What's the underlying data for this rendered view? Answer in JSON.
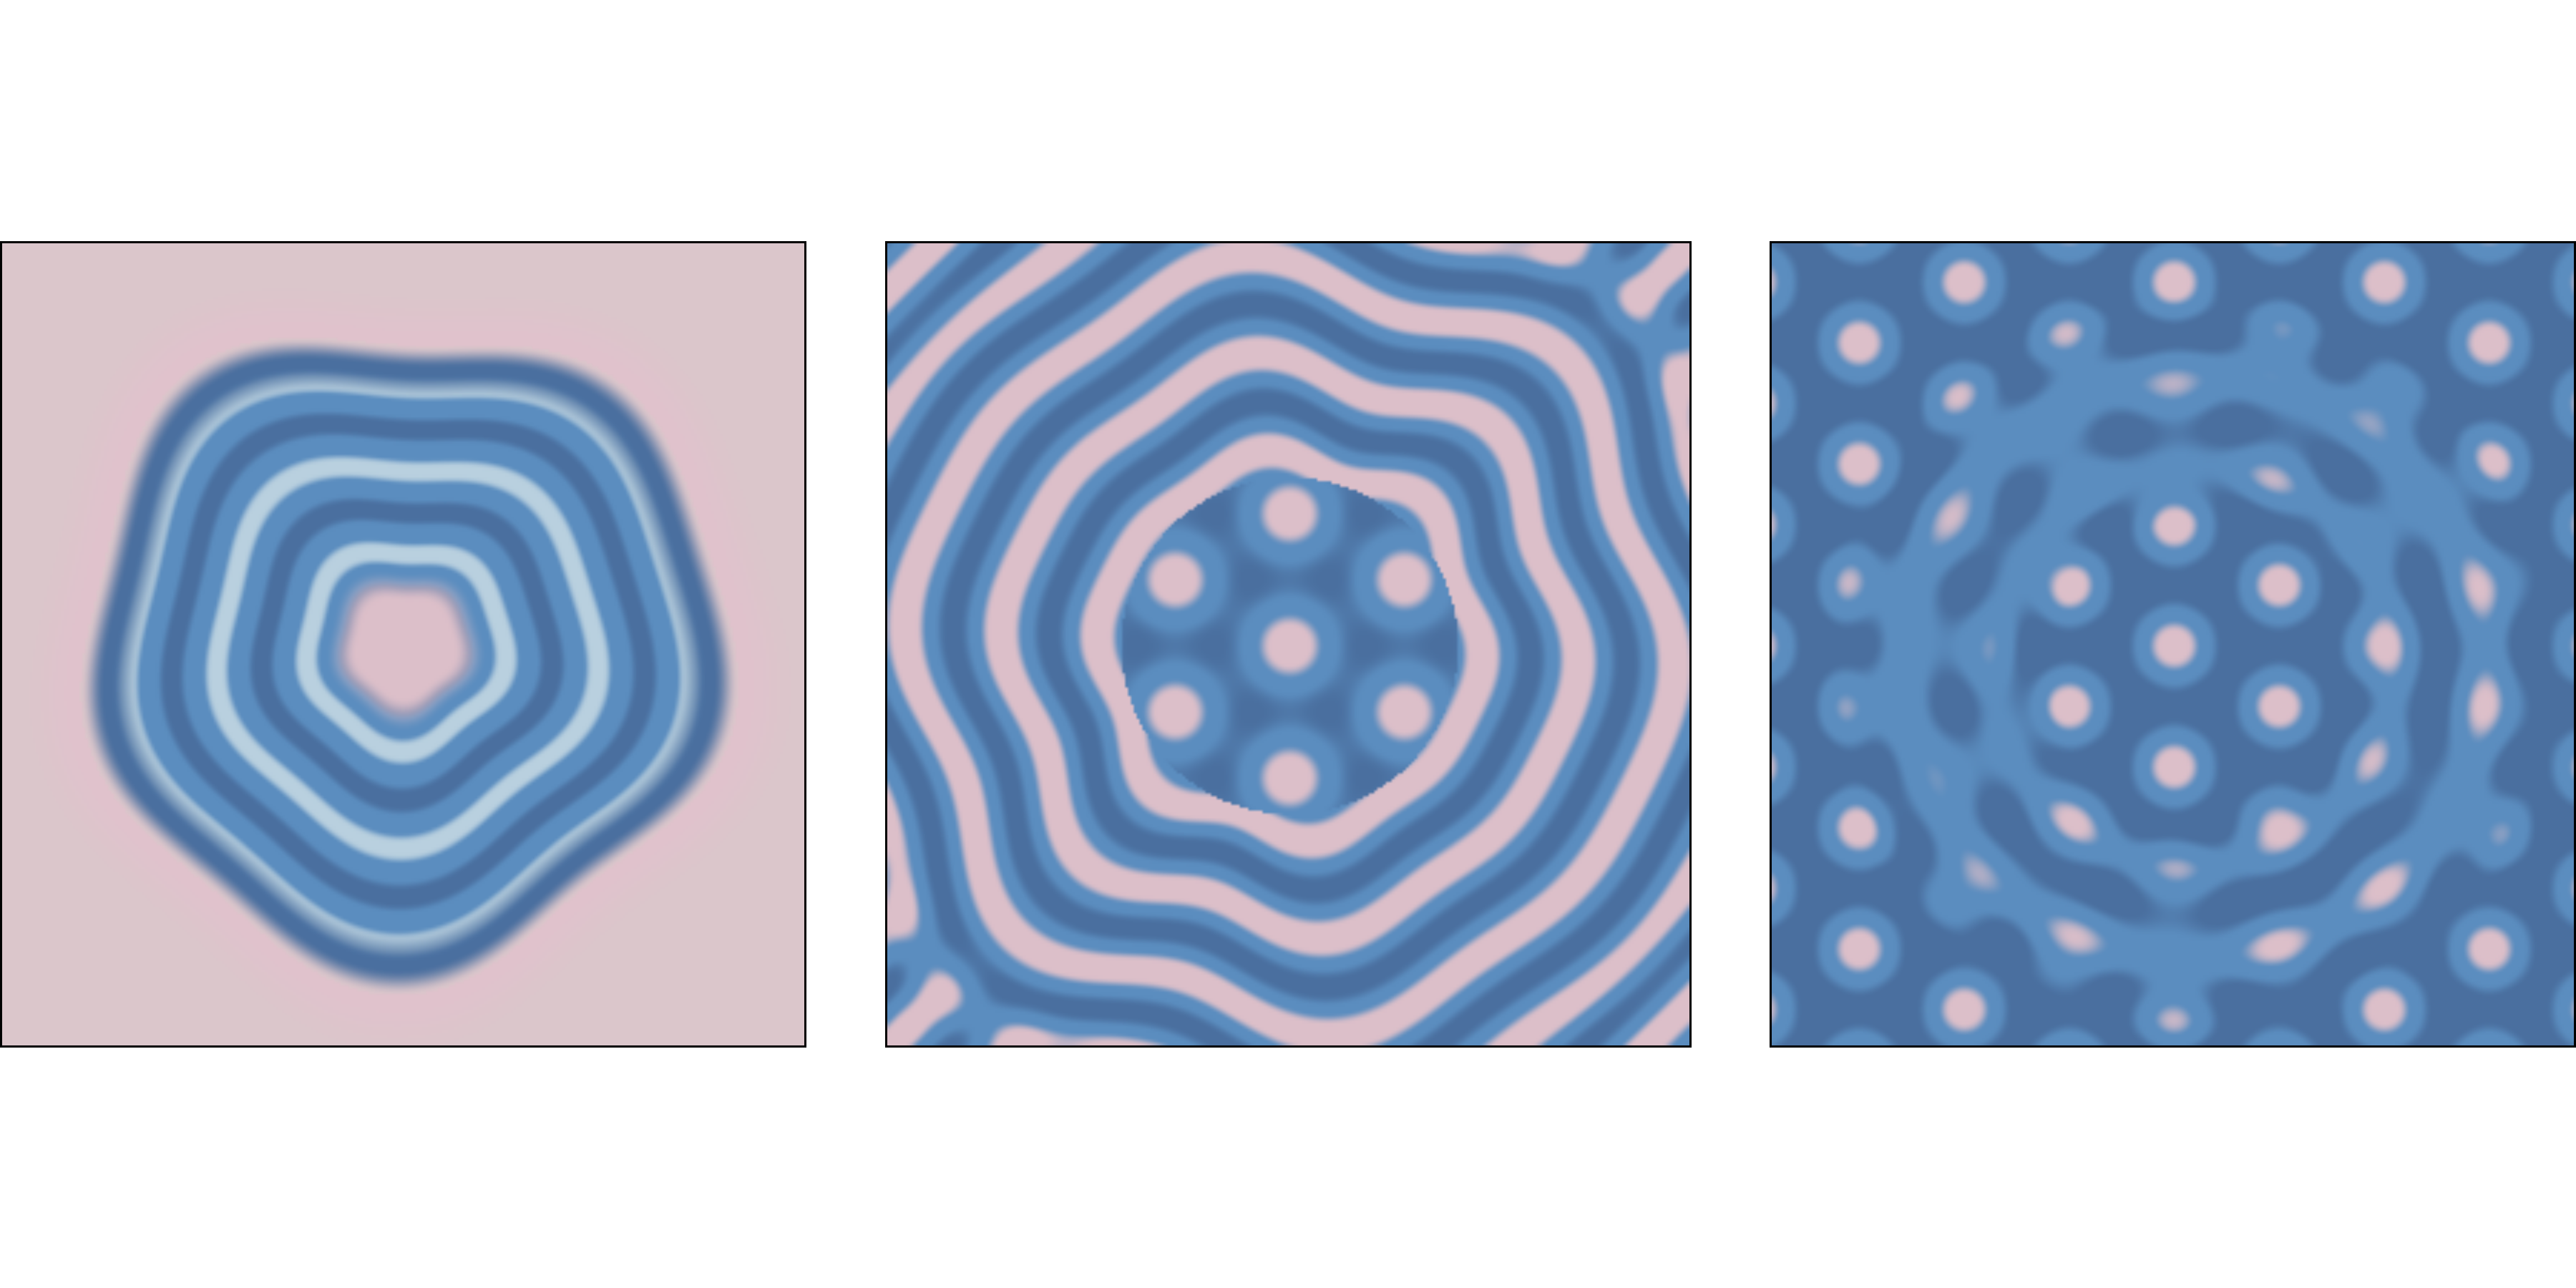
{
  "colors": {
    "background": "#ffffff",
    "frame": "#000000",
    "pink": "#dcbfc9",
    "light_blue": "#b9d0df",
    "mid_blue": "#5b8dbf",
    "dark_blue": "#4a6f9f",
    "faint_pink": "#dbc6cb"
  },
  "panels": [
    {
      "name": "pattern-panel-early",
      "pattern": "target-rings"
    },
    {
      "name": "pattern-panel-middle",
      "pattern": "labyrinth-stripes"
    },
    {
      "name": "pattern-panel-late",
      "pattern": "spots-and-stripes"
    }
  ]
}
